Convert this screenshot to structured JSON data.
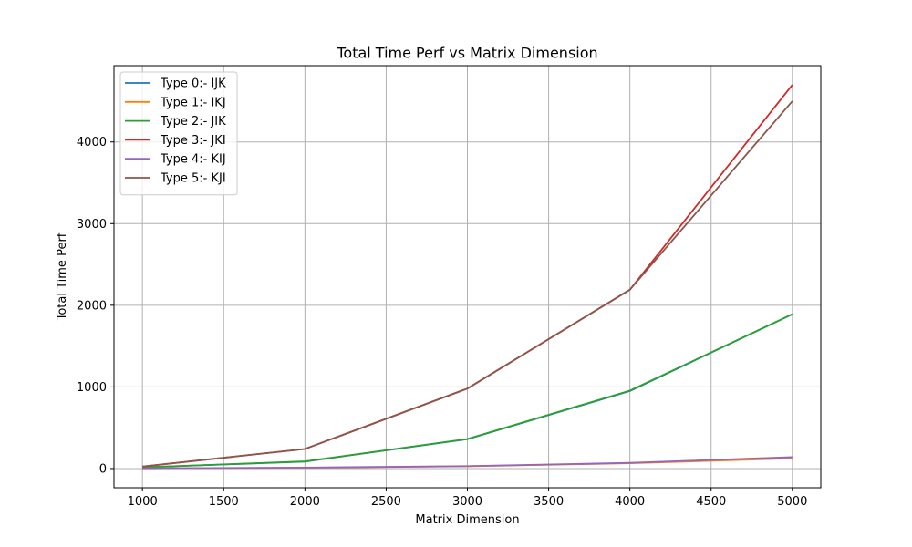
{
  "chart_data": {
    "type": "line",
    "title": "Total Time Perf vs Matrix Dimension",
    "xlabel": "Matrix Dimension",
    "ylabel": "Total Time Perf",
    "xlim": [
      825,
      5175
    ],
    "ylim": [
      -235,
      4935
    ],
    "xticks": [
      1000,
      1500,
      2000,
      2500,
      3000,
      3500,
      4000,
      4500,
      5000
    ],
    "yticks": [
      0,
      1000,
      2000,
      3000,
      4000
    ],
    "grid": true,
    "legend_position": "upper-left",
    "x": [
      1000,
      2000,
      3000,
      4000,
      5000
    ],
    "series": [
      {
        "name": "Type 0:- IJK",
        "color": "#1f77b4",
        "values": [
          15,
          85,
          360,
          950,
          1890
        ]
      },
      {
        "name": "Type 1:- IKJ",
        "color": "#ff7f0e",
        "values": [
          2,
          10,
          28,
          65,
          125
        ]
      },
      {
        "name": "Type 2:- JIK",
        "color": "#2ca02c",
        "values": [
          15,
          88,
          362,
          955,
          1890
        ]
      },
      {
        "name": "Type 3:- JKI",
        "color": "#d62728",
        "values": [
          25,
          240,
          980,
          2190,
          4700
        ]
      },
      {
        "name": "Type 4:- KIJ",
        "color": "#9467bd",
        "values": [
          2,
          12,
          30,
          70,
          140
        ]
      },
      {
        "name": "Type 5:- KJI",
        "color": "#8c564b",
        "values": [
          25,
          240,
          980,
          2190,
          4500
        ]
      }
    ]
  }
}
